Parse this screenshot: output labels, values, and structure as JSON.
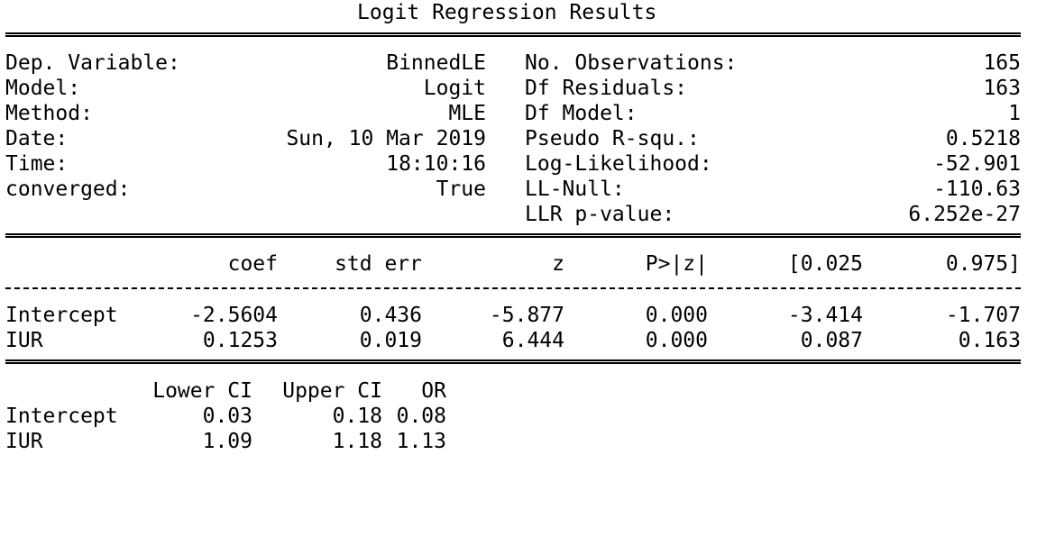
{
  "title": "Logit Regression Results",
  "header_left": [
    {
      "label": "Dep. Variable:",
      "value": "BinnedLE"
    },
    {
      "label": "Model:",
      "value": "Logit"
    },
    {
      "label": "Method:",
      "value": "MLE"
    },
    {
      "label": "Date:",
      "value": "Sun, 10 Mar 2019"
    },
    {
      "label": "Time:",
      "value": "18:10:16"
    },
    {
      "label": "converged:",
      "value": "True"
    }
  ],
  "header_right": [
    {
      "label": "No. Observations:",
      "value": "165"
    },
    {
      "label": "Df Residuals:",
      "value": "163"
    },
    {
      "label": "Df Model:",
      "value": "1"
    },
    {
      "label": "Pseudo R-squ.:",
      "value": "0.5218"
    },
    {
      "label": "Log-Likelihood:",
      "value": "-52.901"
    },
    {
      "label": "LL-Null:",
      "value": "-110.63"
    },
    {
      "label": "LLR p-value:",
      "value": "6.252e-27"
    }
  ],
  "coef_table": {
    "columns": [
      "coef",
      "std err",
      "z",
      "P>|z|",
      "[0.025",
      "0.975]"
    ],
    "rows": [
      {
        "name": "Intercept",
        "values": [
          "-2.5604",
          "0.436",
          "-5.877",
          "0.000",
          "-3.414",
          "-1.707"
        ]
      },
      {
        "name": "IUR",
        "values": [
          "0.1253",
          "0.019",
          "6.444",
          "0.000",
          "0.087",
          "0.163"
        ]
      }
    ]
  },
  "ci_table": {
    "columns": [
      "Lower CI",
      "Upper CI",
      "OR"
    ],
    "rows": [
      {
        "name": "Intercept",
        "values": [
          "0.03",
          "0.18",
          "0.08"
        ]
      },
      {
        "name": "IUR",
        "values": [
          "1.09",
          "1.18",
          "1.13"
        ]
      }
    ]
  }
}
